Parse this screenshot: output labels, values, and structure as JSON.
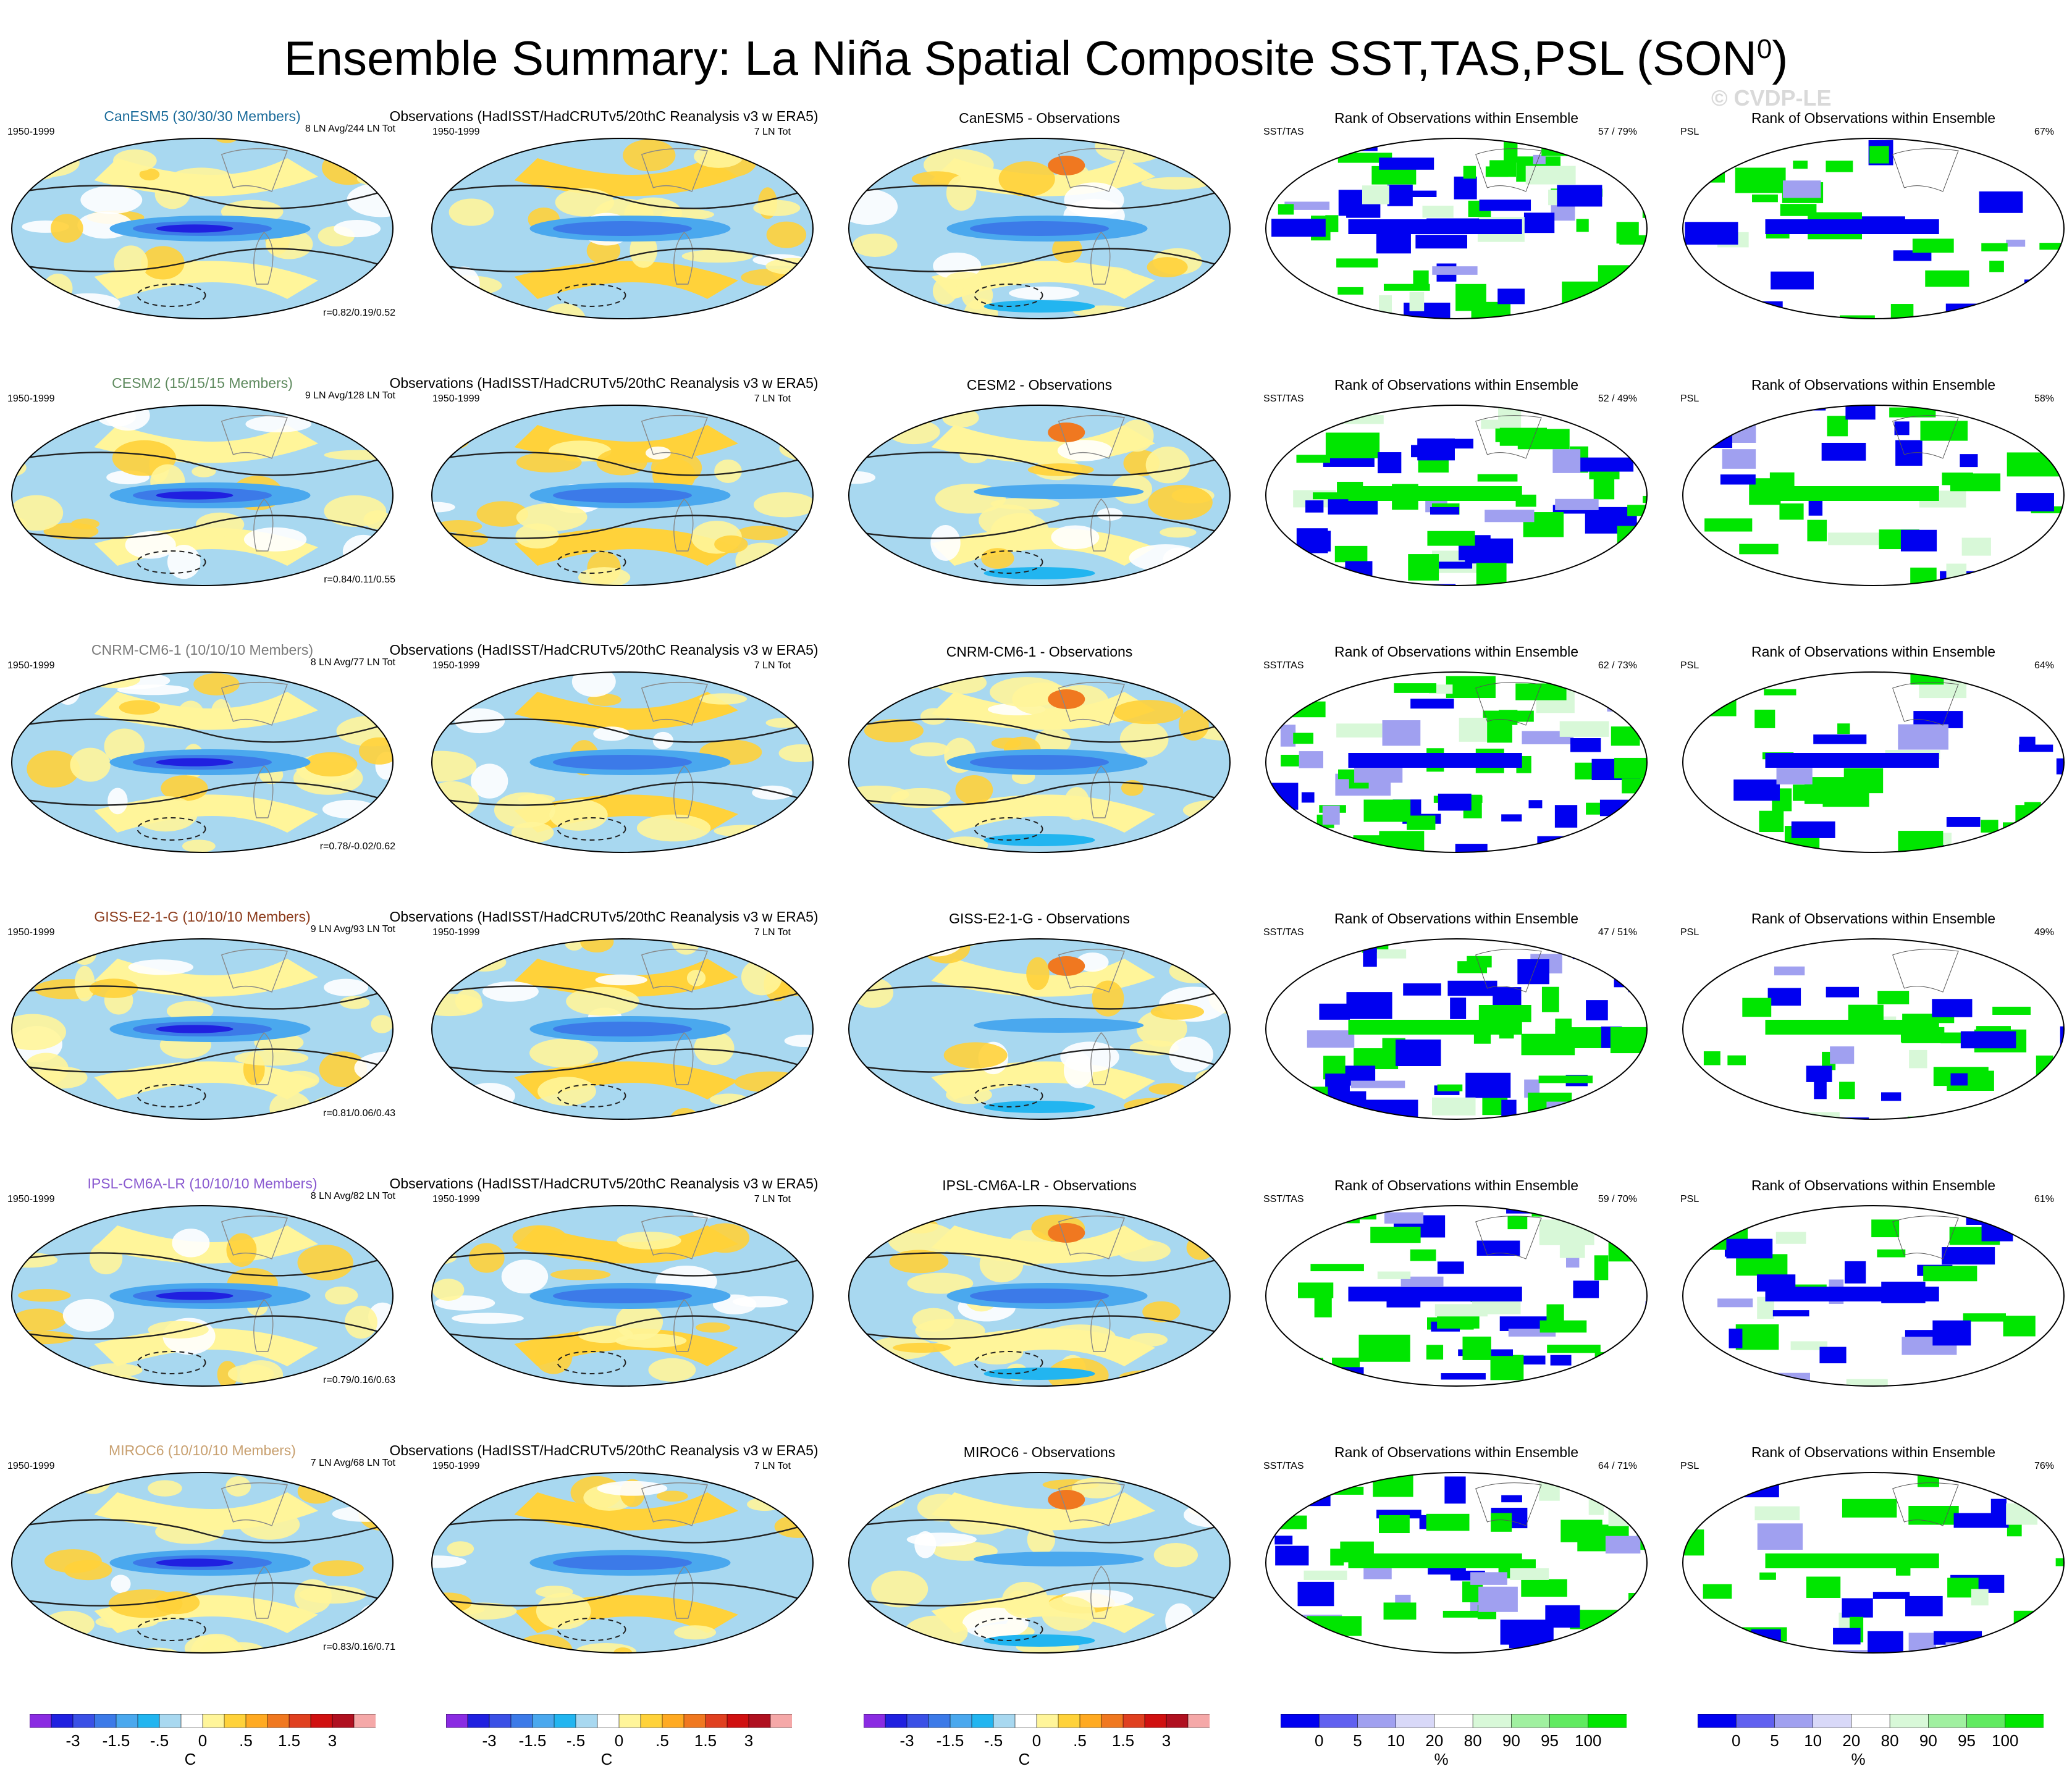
{
  "title": "Ensemble Summary: La Niña Spatial Composite SST,TAS,PSL (SON",
  "title_sup": "0",
  "title_close": ")",
  "watermark": "© CVDP-LE",
  "obs_title": "Observations (HadISST/HadCRUTv5/20thC Reanalysis v3 w ERA5)",
  "rank_title": "Rank of Observations within Ensemble",
  "period": "1950-1999",
  "obs_count": "7 LN Tot",
  "sst_tag": "SST/TAS",
  "psl_tag": "PSL",
  "colors": {
    "green": "#00e600",
    "blue": "#0000f0",
    "model_titles": [
      "#1a6b9a",
      "#5e8a5e",
      "#7a7a7a",
      "#8b3a1a",
      "#8a5ad0",
      "#c8a070"
    ]
  },
  "rows": [
    {
      "model_title": "CanESM5 (30/30/30 Members)",
      "ln_info": "8 LN Avg/244 LN Tot",
      "corr": "r=0.82/0.19/0.52",
      "diff_title": "CanESM5 - Observations",
      "sst_pct": "57 / 79%",
      "psl_pct": "67%"
    },
    {
      "model_title": "CESM2 (15/15/15 Members)",
      "ln_info": "9 LN Avg/128 LN Tot",
      "corr": "r=0.84/0.11/0.55",
      "diff_title": "CESM2 - Observations",
      "sst_pct": "52 / 49%",
      "psl_pct": "58%"
    },
    {
      "model_title": "CNRM-CM6-1 (10/10/10 Members)",
      "ln_info": "8 LN Avg/77 LN Tot",
      "corr": "r=0.78/-0.02/0.62",
      "diff_title": "CNRM-CM6-1 - Observations",
      "sst_pct": "62 / 73%",
      "psl_pct": "64%"
    },
    {
      "model_title": "GISS-E2-1-G (10/10/10 Members)",
      "ln_info": "9 LN Avg/93 LN Tot",
      "corr": "r=0.81/0.06/0.43",
      "diff_title": "GISS-E2-1-G - Observations",
      "sst_pct": "47 / 51%",
      "psl_pct": "49%"
    },
    {
      "model_title": "IPSL-CM6A-LR (10/10/10 Members)",
      "ln_info": "8 LN Avg/82 LN Tot",
      "corr": "r=0.79/0.16/0.63",
      "diff_title": "IPSL-CM6A-LR - Observations",
      "sst_pct": "59 / 70%",
      "psl_pct": "61%"
    },
    {
      "model_title": "MIROC6 (10/10/10 Members)",
      "ln_info": "7 LN Avg/68 LN Tot",
      "corr": "r=0.83/0.16/0.71",
      "diff_title": "MIROC6 - Observations",
      "sst_pct": "64 / 71%",
      "psl_pct": "76%"
    }
  ],
  "chart_data": {
    "type": "heatmap",
    "temperature_colorbar": {
      "unit": "C",
      "tick_labels": [
        "-3",
        "-1.5",
        "-.5",
        "0",
        ".5",
        "1.5",
        "3"
      ],
      "colors": [
        "#8a2be2",
        "#2020e0",
        "#3a50e6",
        "#3c7ae8",
        "#4aa8ee",
        "#22b5f0",
        "#a8d8f0",
        "#ffffff",
        "#fff59a",
        "#ffd23a",
        "#ffaa22",
        "#f07820",
        "#e04020",
        "#d01010",
        "#b01020",
        "#f5a8a8"
      ]
    },
    "rank_colorbar": {
      "unit": "%",
      "tick_labels": [
        "0",
        "5",
        "10",
        "20",
        "80",
        "90",
        "95",
        "100"
      ],
      "colors": [
        "#0000f0",
        "#6060f0",
        "#a0a0f0",
        "#d8d8f8",
        "#ffffff",
        "#d8f8d8",
        "#a0f0a0",
        "#60ea60",
        "#00e600"
      ]
    }
  }
}
